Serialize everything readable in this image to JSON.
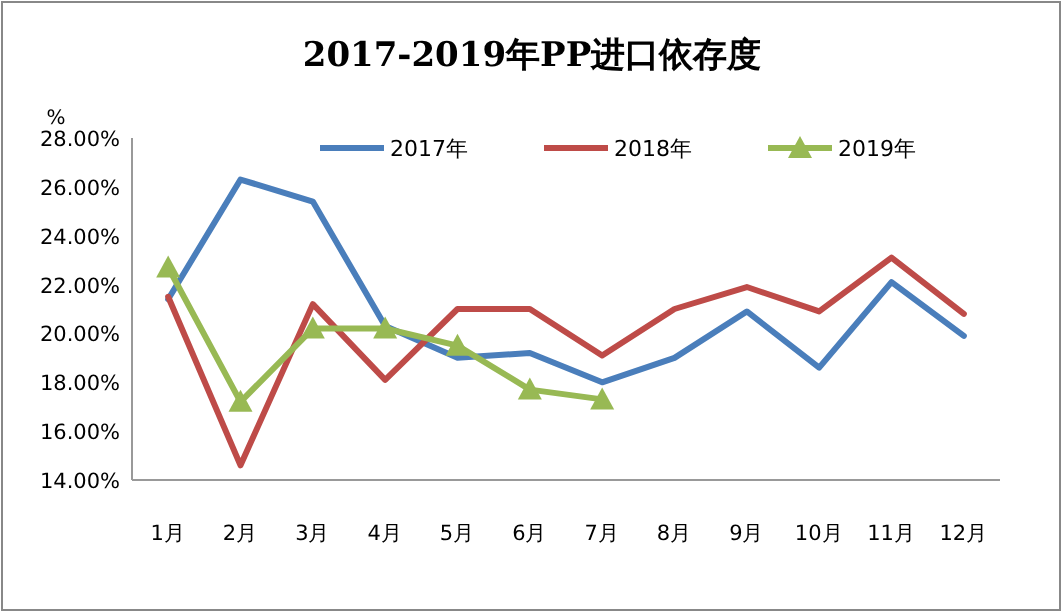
{
  "chart_data": {
    "type": "line",
    "title": "2017-2019年PP进口依存度",
    "ylabel": "%",
    "categories": [
      "1月",
      "2月",
      "3月",
      "4月",
      "5月",
      "6月",
      "7月",
      "8月",
      "9月",
      "10月",
      "11月",
      "12月"
    ],
    "series": [
      {
        "name": "2017年",
        "color": "#4a7ebb",
        "values": [
          21.4,
          26.3,
          25.4,
          20.3,
          19.0,
          19.2,
          18.0,
          19.0,
          20.9,
          18.6,
          22.1,
          19.9
        ]
      },
      {
        "name": "2018年",
        "color": "#be4b48",
        "values": [
          21.5,
          14.6,
          21.2,
          18.1,
          21.0,
          21.0,
          19.1,
          21.0,
          21.9,
          20.9,
          23.1,
          20.8
        ]
      },
      {
        "name": "2019年",
        "color": "#98b954",
        "marker": "triangle",
        "values": [
          22.7,
          17.2,
          20.2,
          20.2,
          19.5,
          17.7,
          17.3,
          null,
          null,
          null,
          null,
          null
        ]
      }
    ],
    "ylim": [
      14,
      28
    ],
    "yticks": [
      {
        "value": 14,
        "label": "14.00%"
      },
      {
        "value": 16,
        "label": "16.00%"
      },
      {
        "value": 18,
        "label": "18.00%"
      },
      {
        "value": 20,
        "label": "20.00%"
      },
      {
        "value": 22,
        "label": "22.00%"
      },
      {
        "value": 24,
        "label": "24.00%"
      },
      {
        "value": 26,
        "label": "26.00%"
      },
      {
        "value": 28,
        "label": "28.00%"
      }
    ],
    "legend": "top"
  }
}
